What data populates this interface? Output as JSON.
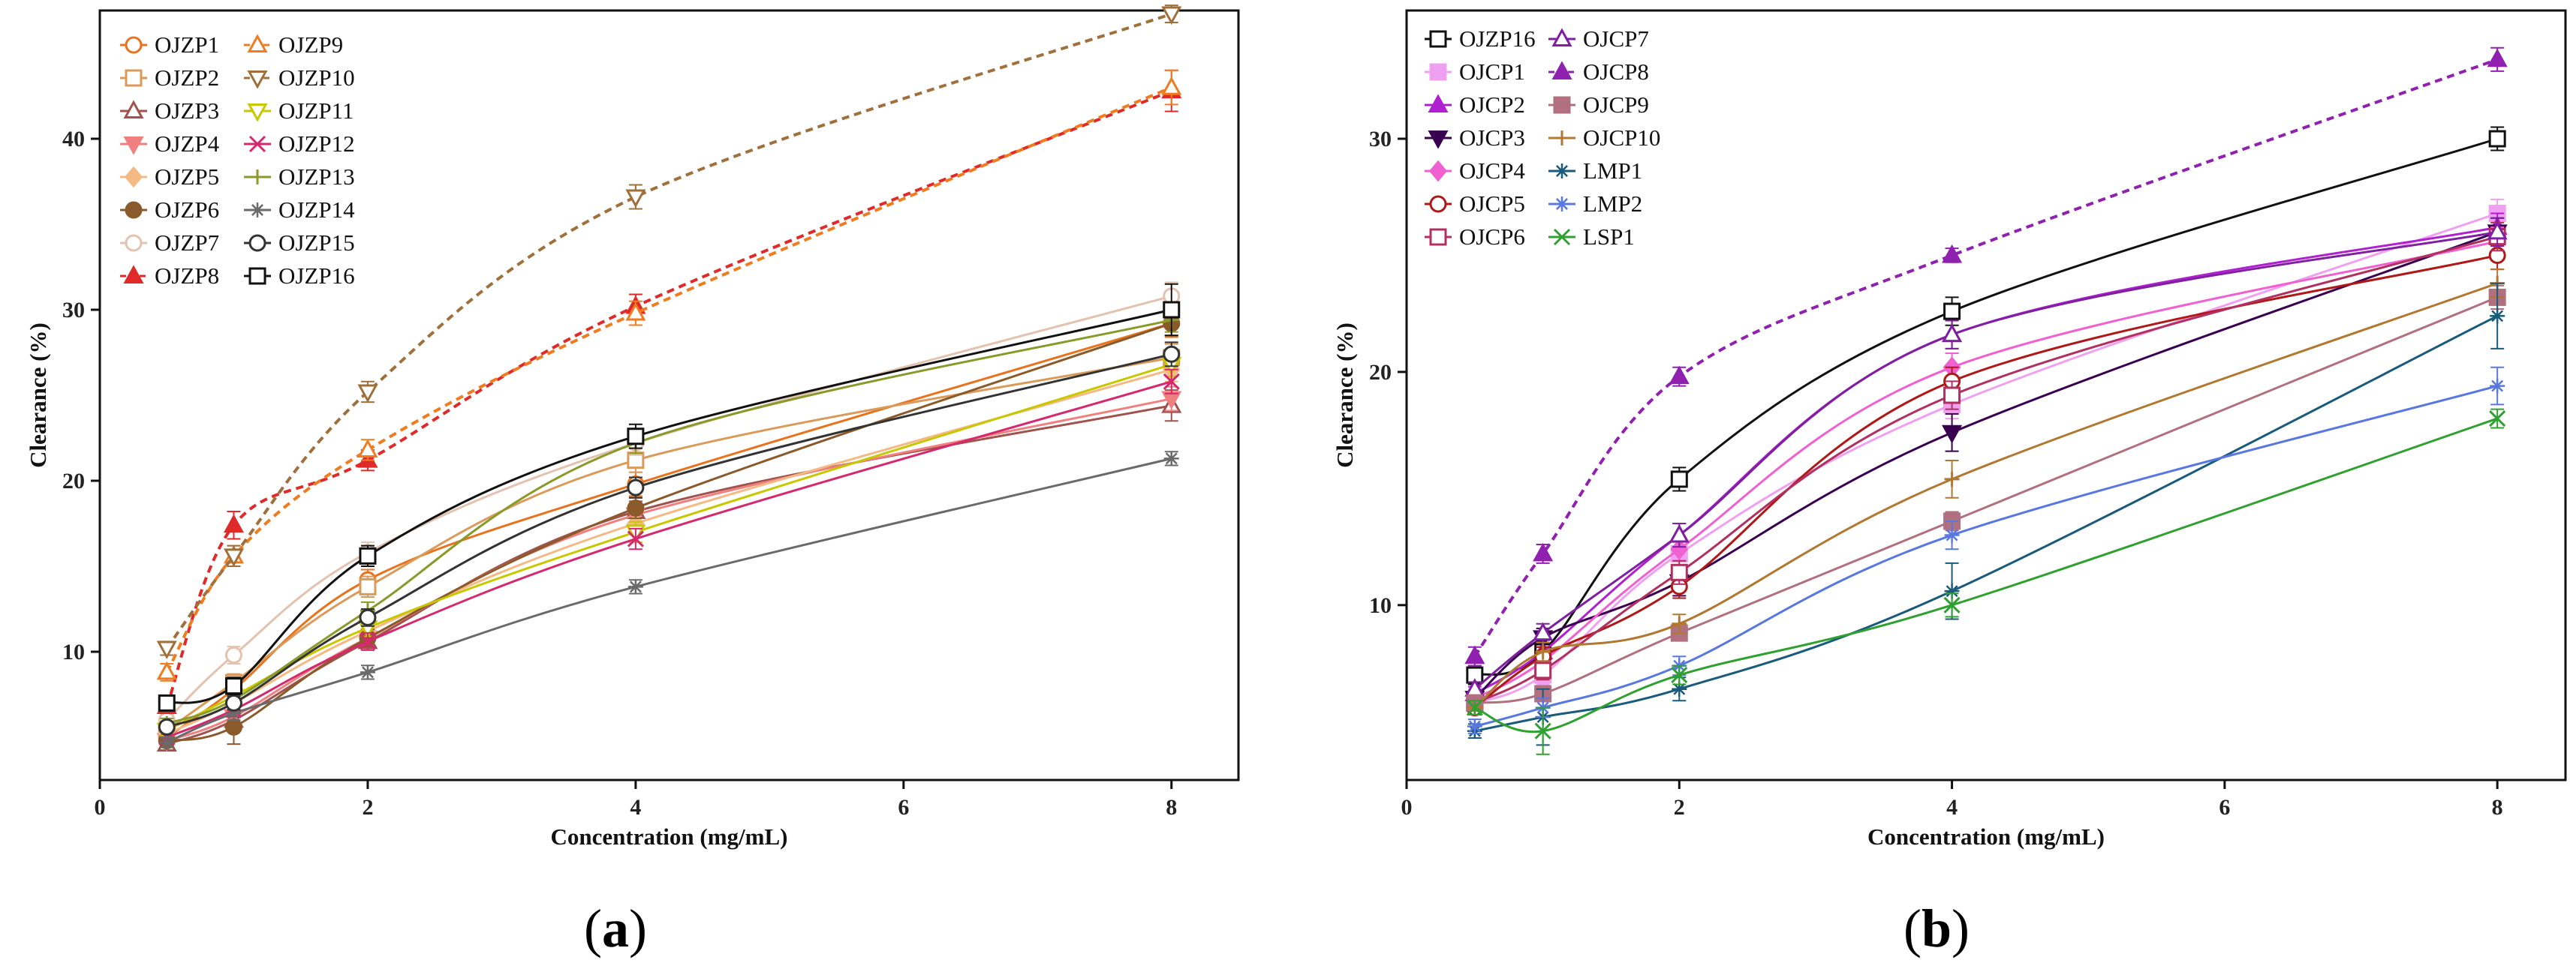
{
  "panels": [
    {
      "label_prefix": "(",
      "label_letter": "a",
      "label_suffix": ")"
    },
    {
      "label_prefix": "(",
      "label_letter": "b",
      "label_suffix": ")"
    }
  ],
  "chart_data": [
    {
      "type": "line",
      "panel": "a",
      "title": "",
      "xlabel": "Concentration (mg/mL)",
      "ylabel": "Clearance (%)",
      "xlim": [
        0,
        8.5
      ],
      "ylim": [
        2.5,
        47.5
      ],
      "xticks": [
        0,
        2,
        4,
        6,
        8
      ],
      "yticks": [
        10,
        20,
        30,
        40
      ],
      "legend_position": "top-left",
      "legend_columns": 2,
      "x": [
        0.5,
        1,
        2,
        4,
        8
      ],
      "series": [
        {
          "name": "OJZP1",
          "color": "#e8731f",
          "marker": "circle-open",
          "dashed": false,
          "values": [
            5.0,
            7.8,
            14.2,
            19.8,
            29.2
          ],
          "errors": [
            0.4,
            0.5,
            0.6,
            0.7,
            0.8
          ]
        },
        {
          "name": "OJZP2",
          "color": "#d99a5a",
          "marker": "square-open",
          "dashed": false,
          "values": [
            5.4,
            8.2,
            13.8,
            21.2,
            27.2
          ],
          "errors": [
            0.4,
            0.5,
            0.6,
            0.7,
            0.8
          ]
        },
        {
          "name": "OJZP3",
          "color": "#a0524d",
          "marker": "triangle-up-open",
          "dashed": false,
          "values": [
            4.6,
            6.0,
            10.6,
            18.2,
            24.4
          ],
          "errors": [
            0.3,
            0.5,
            0.5,
            0.6,
            0.9
          ]
        },
        {
          "name": "OJZP4",
          "color": "#f08080",
          "marker": "triangle-down-filled",
          "dashed": false,
          "values": [
            4.8,
            6.2,
            10.8,
            18.0,
            24.8
          ],
          "errors": [
            0.3,
            0.4,
            0.5,
            0.6,
            0.7
          ]
        },
        {
          "name": "OJZP5",
          "color": "#f5b984",
          "marker": "diamond-filled",
          "dashed": false,
          "values": [
            5.2,
            7.0,
            11.2,
            17.5,
            26.5
          ],
          "errors": [
            0.3,
            0.4,
            0.5,
            0.6,
            0.7
          ]
        },
        {
          "name": "OJZP6",
          "color": "#8b5a2b",
          "marker": "circle-filled",
          "dashed": false,
          "values": [
            4.8,
            5.6,
            10.8,
            18.4,
            29.2
          ],
          "errors": [
            0.3,
            1.0,
            0.5,
            0.6,
            0.7
          ]
        },
        {
          "name": "OJZP7",
          "color": "#e3c3b0",
          "marker": "circle-open",
          "dashed": false,
          "values": [
            6.0,
            9.8,
            15.8,
            22.2,
            30.8
          ],
          "errors": [
            0.4,
            0.5,
            0.6,
            0.7,
            0.8
          ]
        },
        {
          "name": "OJZP8",
          "color": "#e02a2a",
          "marker": "triangle-up-filled",
          "dashed": true,
          "values": [
            6.8,
            17.4,
            21.2,
            30.2,
            42.8
          ],
          "errors": [
            0.4,
            0.8,
            0.6,
            0.7,
            1.2
          ]
        },
        {
          "name": "OJZP9",
          "color": "#f07c20",
          "marker": "triangle-up-open",
          "dashed": true,
          "values": [
            8.8,
            15.6,
            21.8,
            29.8,
            43.0
          ],
          "errors": [
            0.5,
            0.6,
            0.6,
            0.7,
            1.0
          ]
        },
        {
          "name": "OJZP10",
          "color": "#a0703c",
          "marker": "triangle-down-open",
          "dashed": true,
          "values": [
            10.2,
            15.6,
            25.2,
            36.6,
            47.3
          ],
          "errors": [
            0.4,
            0.6,
            0.6,
            0.7,
            0.5
          ]
        },
        {
          "name": "OJZP11",
          "color": "#c8c800",
          "marker": "triangle-down-open",
          "dashed": false,
          "values": [
            5.4,
            7.4,
            11.4,
            17.0,
            26.8
          ],
          "errors": [
            0.3,
            0.4,
            0.5,
            0.6,
            0.7
          ]
        },
        {
          "name": "OJZP12",
          "color": "#d6286e",
          "marker": "cross",
          "dashed": false,
          "values": [
            5.0,
            6.6,
            10.6,
            16.6,
            25.8
          ],
          "errors": [
            0.3,
            0.4,
            0.5,
            0.6,
            0.7
          ]
        },
        {
          "name": "OJZP13",
          "color": "#8a9a2a",
          "marker": "plus",
          "dashed": false,
          "values": [
            5.8,
            7.2,
            12.4,
            22.2,
            29.4
          ],
          "errors": [
            0.3,
            0.4,
            0.5,
            0.6,
            0.7
          ]
        },
        {
          "name": "OJZP14",
          "color": "#6a6a6a",
          "marker": "asterisk",
          "dashed": false,
          "values": [
            4.7,
            6.4,
            8.8,
            13.8,
            21.3
          ],
          "errors": [
            0.3,
            0.4,
            0.4,
            0.4,
            0.4
          ]
        },
        {
          "name": "OJZP15",
          "color": "#333333",
          "marker": "circle-open",
          "dashed": false,
          "values": [
            5.6,
            7.0,
            12.0,
            19.6,
            27.4
          ],
          "errors": [
            0.3,
            0.4,
            0.5,
            0.6,
            0.7
          ]
        },
        {
          "name": "OJZP16",
          "color": "#111111",
          "marker": "square-open",
          "dashed": false,
          "values": [
            7.0,
            8.0,
            15.6,
            22.6,
            30.0
          ],
          "errors": [
            0.4,
            0.5,
            0.6,
            0.7,
            1.5
          ]
        }
      ]
    },
    {
      "type": "line",
      "panel": "b",
      "title": "",
      "xlabel": "Concentration (mg/mL)",
      "ylabel": "Clearance (%)",
      "xlim": [
        0,
        8.5
      ],
      "ylim": [
        2.5,
        35.5
      ],
      "xticks": [
        0,
        2,
        4,
        6,
        8
      ],
      "yticks": [
        10,
        20,
        30
      ],
      "legend_position": "top-left",
      "legend_columns": 2,
      "x": [
        0.5,
        1,
        2,
        4,
        8
      ],
      "series": [
        {
          "name": "OJZP16",
          "color": "#111111",
          "marker": "square-open",
          "dashed": false,
          "values": [
            7.0,
            8.0,
            15.4,
            22.6,
            30.0
          ],
          "errors": [
            0.4,
            0.5,
            0.5,
            0.6,
            0.5
          ]
        },
        {
          "name": "OJCP1",
          "color": "#f0a0f0",
          "marker": "square-filled",
          "dashed": false,
          "values": [
            5.8,
            7.0,
            12.2,
            18.6,
            26.8
          ],
          "errors": [
            0.3,
            0.4,
            0.5,
            0.6,
            0.6
          ]
        },
        {
          "name": "OJCP2",
          "color": "#b020d0",
          "marker": "triangle-up-filled",
          "dashed": false,
          "values": [
            6.2,
            8.0,
            13.0,
            21.6,
            26.2
          ],
          "errors": [
            0.3,
            0.4,
            0.5,
            0.6,
            0.6
          ]
        },
        {
          "name": "OJCP3",
          "color": "#3a0050",
          "marker": "triangle-down-filled",
          "dashed": false,
          "values": [
            6.0,
            8.6,
            11.0,
            17.4,
            26.0
          ],
          "errors": [
            0.3,
            0.4,
            0.6,
            0.8,
            0.6
          ]
        },
        {
          "name": "OJCP4",
          "color": "#f060d0",
          "marker": "diamond-filled",
          "dashed": false,
          "values": [
            6.0,
            7.6,
            12.4,
            20.2,
            25.6
          ],
          "errors": [
            0.3,
            0.4,
            0.5,
            0.6,
            0.6
          ]
        },
        {
          "name": "OJCP5",
          "color": "#b01818",
          "marker": "circle-open",
          "dashed": false,
          "values": [
            5.6,
            7.8,
            10.8,
            19.6,
            25.0
          ],
          "errors": [
            0.3,
            0.4,
            0.5,
            0.6,
            0.6
          ]
        },
        {
          "name": "OJCP6",
          "color": "#b03060",
          "marker": "square-open",
          "dashed": false,
          "values": [
            5.8,
            7.2,
            11.4,
            19.0,
            25.8
          ],
          "errors": [
            0.3,
            0.4,
            0.5,
            0.6,
            0.6
          ]
        },
        {
          "name": "OJCP7",
          "color": "#8020a0",
          "marker": "triangle-up-open",
          "dashed": false,
          "values": [
            6.4,
            8.8,
            13.0,
            21.6,
            26.0
          ],
          "errors": [
            0.3,
            0.4,
            0.5,
            0.6,
            0.6
          ]
        },
        {
          "name": "OJCP8",
          "color": "#9020b0",
          "marker": "triangle-up-filled",
          "dashed": true,
          "values": [
            7.8,
            12.2,
            19.8,
            25.0,
            33.4
          ],
          "errors": [
            0.4,
            0.4,
            0.4,
            0.3,
            0.5
          ]
        },
        {
          "name": "OJCP9",
          "color": "#b07080",
          "marker": "square-filled",
          "dashed": false,
          "values": [
            5.8,
            6.2,
            8.8,
            13.6,
            23.2
          ],
          "errors": [
            0.3,
            0.3,
            0.3,
            0.4,
            0.5
          ]
        },
        {
          "name": "OJCP10",
          "color": "#b07830",
          "marker": "plus",
          "dashed": false,
          "values": [
            5.6,
            8.0,
            9.2,
            15.4,
            23.8
          ],
          "errors": [
            0.3,
            0.4,
            0.4,
            0.8,
            0.6
          ]
        },
        {
          "name": "LMP1",
          "color": "#1a5a7a",
          "marker": "star",
          "dashed": false,
          "values": [
            4.6,
            5.2,
            6.4,
            10.6,
            22.4
          ],
          "errors": [
            0.3,
            1.2,
            0.5,
            1.2,
            1.4
          ]
        },
        {
          "name": "LMP2",
          "color": "#5878e0",
          "marker": "asterisk",
          "dashed": false,
          "values": [
            4.8,
            5.6,
            7.4,
            13.0,
            19.4
          ],
          "errors": [
            0.3,
            0.4,
            0.4,
            0.6,
            0.8
          ]
        },
        {
          "name": "LSP1",
          "color": "#30a030",
          "marker": "cross",
          "dashed": false,
          "values": [
            5.6,
            4.6,
            7.0,
            10.0,
            18.0
          ],
          "errors": [
            0.3,
            1.0,
            0.4,
            0.5,
            0.4
          ]
        }
      ]
    }
  ]
}
